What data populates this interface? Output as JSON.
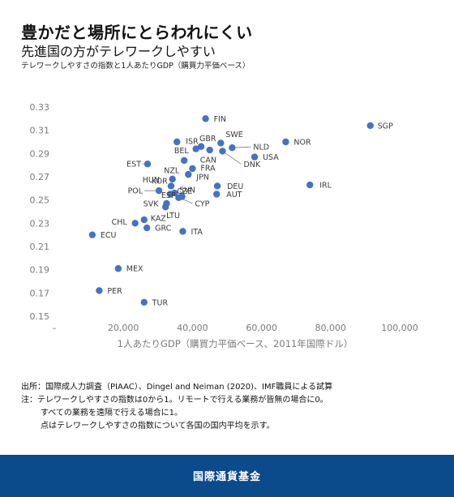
{
  "header": {
    "title": "豊かだと場所にとらわれにくい",
    "subtitle": "先進国の方がテレワークしやすい",
    "description": "テレワークしやすさの指数と1人あたりGDP（購買力平価ベース）"
  },
  "chart_data": {
    "type": "scatter",
    "xlabel": "1人あたりGDP（購買力平価ベース、2011年国際ドル）",
    "ylabel": "",
    "xlim": [
      0,
      100000
    ],
    "ylim": [
      0.15,
      0.33
    ],
    "xticks": [
      {
        "value": 0,
        "label": "–"
      },
      {
        "value": 20000,
        "label": "20,000"
      },
      {
        "value": 40000,
        "label": "40,000"
      },
      {
        "value": 60000,
        "label": "60,000"
      },
      {
        "value": 80000,
        "label": "80,000"
      },
      {
        "value": 100000,
        "label": "100,000"
      }
    ],
    "yticks": [
      {
        "value": 0.33,
        "label": "0.33"
      },
      {
        "value": 0.31,
        "label": "0.31"
      },
      {
        "value": 0.29,
        "label": "0.29"
      },
      {
        "value": 0.27,
        "label": "0.27"
      },
      {
        "value": 0.25,
        "label": "0.25"
      },
      {
        "value": 0.23,
        "label": "0.23"
      },
      {
        "value": 0.21,
        "label": "0.21"
      },
      {
        "value": 0.19,
        "label": "0.19"
      },
      {
        "value": 0.17,
        "label": "0.17"
      },
      {
        "value": 0.15,
        "label": "0.15"
      }
    ],
    "grid": false,
    "point_color": "#4472c4",
    "points": [
      {
        "label": "FIN",
        "x": 43800,
        "y": 0.32
      },
      {
        "label": "SGP",
        "x": 91500,
        "y": 0.314
      },
      {
        "label": "NOR",
        "x": 67000,
        "y": 0.3
      },
      {
        "label": "SWE",
        "x": 48200,
        "y": 0.299
      },
      {
        "label": "GBR",
        "x": 42500,
        "y": 0.296
      },
      {
        "label": "ISR",
        "x": 35500,
        "y": 0.3
      },
      {
        "label": "NLD",
        "x": 51500,
        "y": 0.295
      },
      {
        "label": "CAN",
        "x": 45000,
        "y": 0.293
      },
      {
        "label": "USA",
        "x": 58000,
        "y": 0.287
      },
      {
        "label": "DNK",
        "x": 48700,
        "y": 0.292
      },
      {
        "label": "BEL",
        "x": 41000,
        "y": 0.294
      },
      {
        "label": "EST",
        "x": 27000,
        "y": 0.281
      },
      {
        "label": "NZL",
        "x": 37600,
        "y": 0.284
      },
      {
        "label": "FRA",
        "x": 40000,
        "y": 0.277
      },
      {
        "label": "JPN",
        "x": 38800,
        "y": 0.272
      },
      {
        "label": "KOR",
        "x": 34200,
        "y": 0.268
      },
      {
        "label": "HUN",
        "x": 33800,
        "y": 0.262
      },
      {
        "label": "DEU",
        "x": 47200,
        "y": 0.262
      },
      {
        "label": "IRL",
        "x": 74000,
        "y": 0.263
      },
      {
        "label": "SVN",
        "x": 34800,
        "y": 0.256
      },
      {
        "label": "POL",
        "x": 30300,
        "y": 0.258
      },
      {
        "label": "CZE",
        "x": 33600,
        "y": 0.255
      },
      {
        "label": "AUT",
        "x": 47000,
        "y": 0.255
      },
      {
        "label": "ESP",
        "x": 37000,
        "y": 0.253
      },
      {
        "label": "CYP",
        "x": 36000,
        "y": 0.252
      },
      {
        "label": "SVK",
        "x": 32500,
        "y": 0.247
      },
      {
        "label": "LTU",
        "x": 32200,
        "y": 0.244
      },
      {
        "label": "KAZ",
        "x": 26000,
        "y": 0.233
      },
      {
        "label": "CHL",
        "x": 23400,
        "y": 0.23
      },
      {
        "label": "GRC",
        "x": 26800,
        "y": 0.226
      },
      {
        "label": "ITA",
        "x": 37200,
        "y": 0.223
      },
      {
        "label": "ECU",
        "x": 11000,
        "y": 0.22
      },
      {
        "label": "MEX",
        "x": 18500,
        "y": 0.191
      },
      {
        "label": "PER",
        "x": 13000,
        "y": 0.172
      },
      {
        "label": "TUR",
        "x": 26000,
        "y": 0.162
      }
    ]
  },
  "notes": [
    "出所：国際成人力調査（PIAAC）、Dingel and Neiman (2020)、IMF職員による試算",
    "注：テレワークしやすさの指数は0から1。リモートで行える業務が皆無の場合に0。",
    "すべての業務を遠隔で行える場合に1。",
    "点はテレワークしやすさの指数について各国の国内平均を示す。"
  ],
  "footer": {
    "label": "国際通貨基金"
  }
}
